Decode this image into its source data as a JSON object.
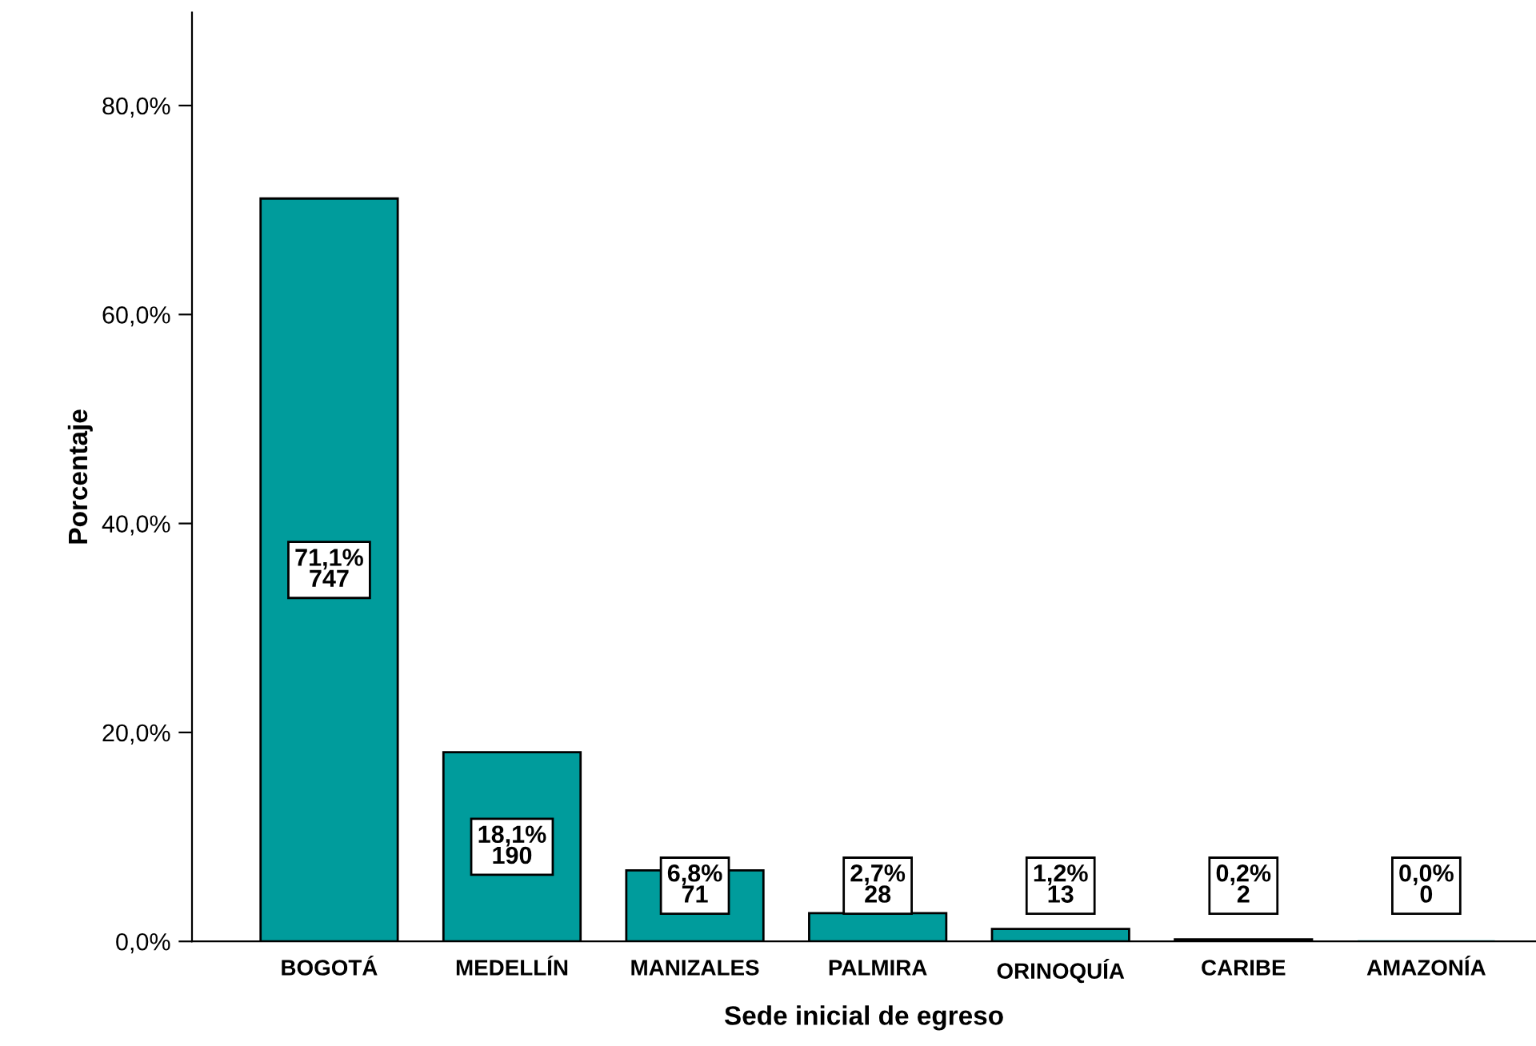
{
  "chart_data": {
    "type": "bar",
    "xlabel": "Sede inicial de egreso",
    "ylabel": "Porcentaje",
    "categories": [
      "BOGOTÁ",
      "MEDELLÍN",
      "MANIZALES",
      "PALMIRA",
      "ORINOQUÍA",
      "CARIBE",
      "AMAZONÍA"
    ],
    "values": [
      71.1,
      18.1,
      6.8,
      2.7,
      1.2,
      0.2,
      0.0
    ],
    "value_labels": [
      "71,1%\n747",
      "18,1%\n190",
      "6,8%\n71",
      "2,7%\n28",
      "1,2%\n13",
      "0,2%\n2",
      "0,0%\n0"
    ],
    "color": "#009c9c",
    "ylim": [
      0,
      88.9
    ],
    "yticks": [
      {
        "value": 0,
        "label": "0,0%"
      },
      {
        "value": 20,
        "label": "20,0%"
      },
      {
        "value": 40,
        "label": "40,0%"
      },
      {
        "value": 60,
        "label": "60,0%"
      },
      {
        "value": 80,
        "label": "80,0%"
      }
    ],
    "grid": false,
    "legend": false
  }
}
